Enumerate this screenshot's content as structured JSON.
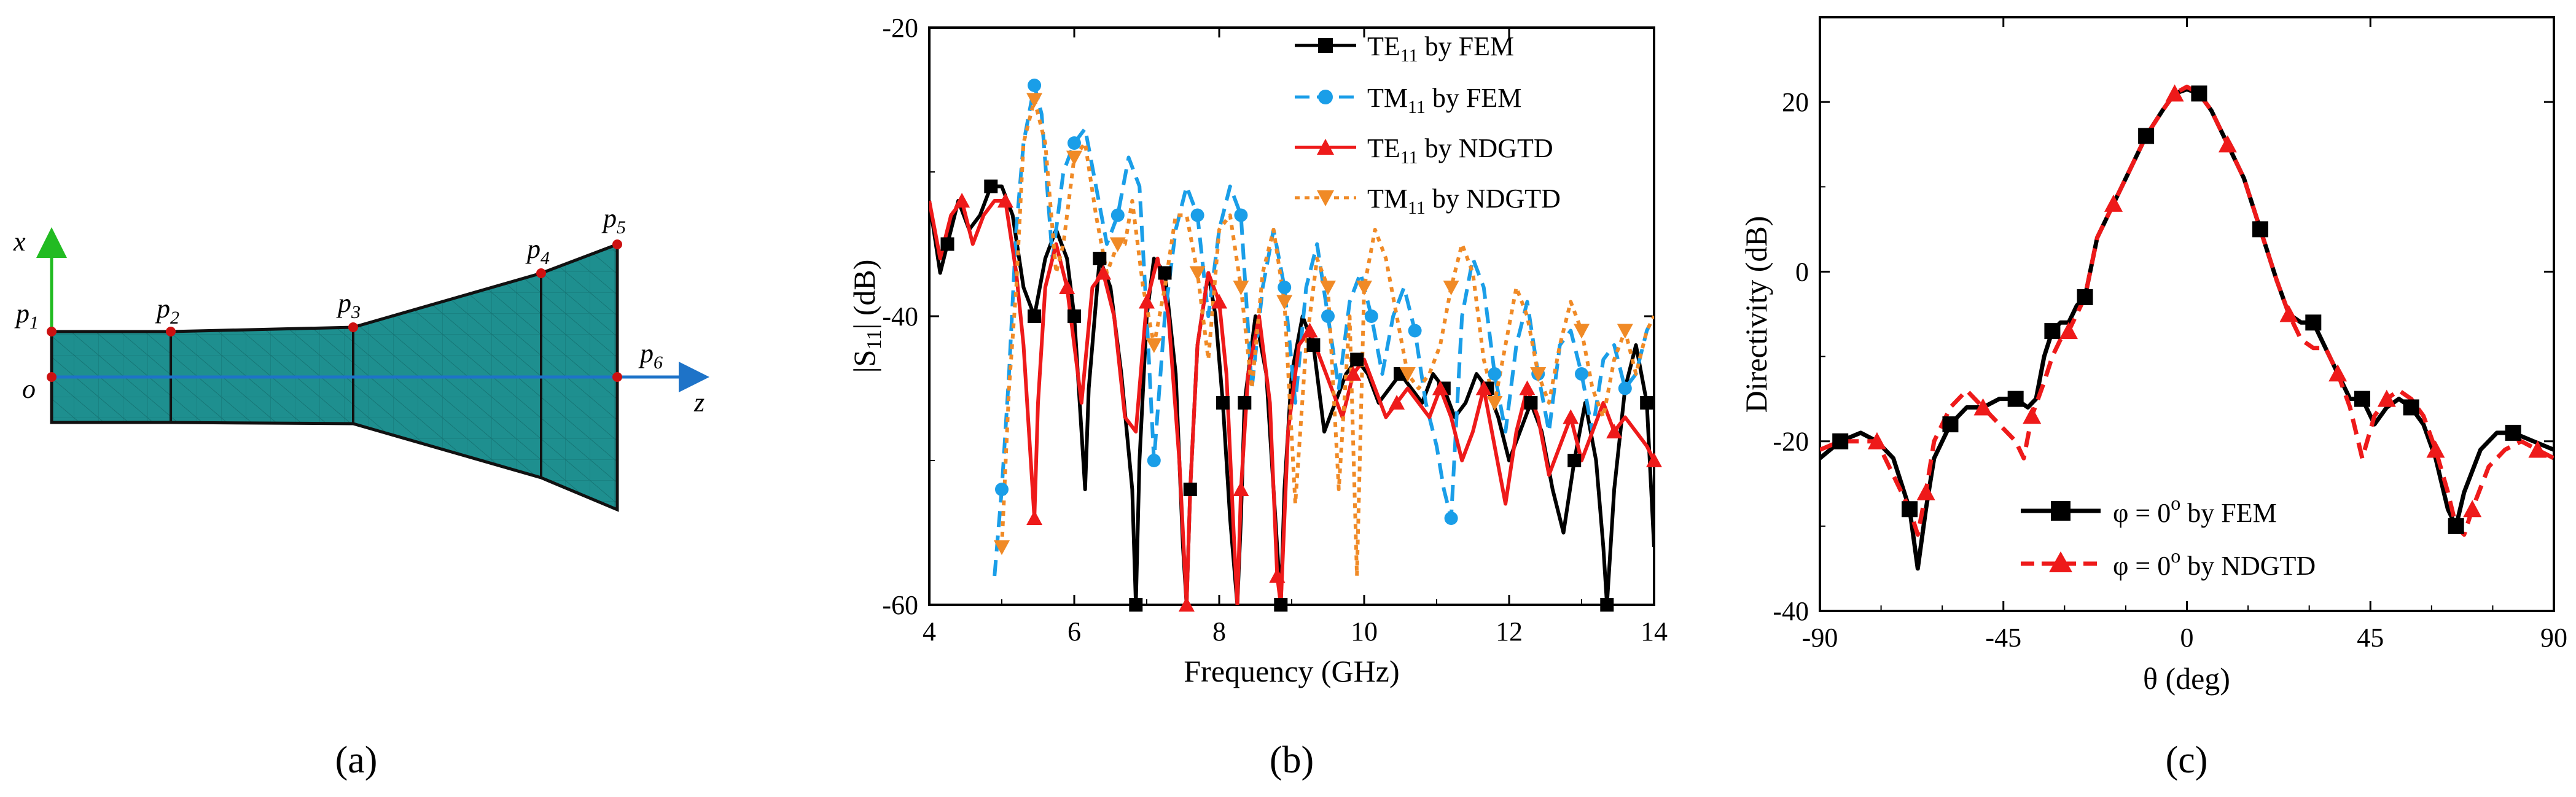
{
  "panel_labels": [
    "(a)",
    "(b)",
    "(c)"
  ],
  "colors": {
    "black": "#000000",
    "blue": "#1a9ee8",
    "red": "#ee1a1a",
    "orange": "#f08a26",
    "teal": "#1e8f8f",
    "axis_green": "#22bb22",
    "axis_blue": "#1e73c8",
    "point_red": "#cc1111"
  },
  "geometry": {
    "axis_x_label": "x",
    "axis_z_label": "z",
    "origin_label": "o",
    "points": [
      {
        "main": "p",
        "sub": "1"
      },
      {
        "main": "p",
        "sub": "2"
      },
      {
        "main": "p",
        "sub": "3"
      },
      {
        "main": "p",
        "sub": "4"
      },
      {
        "main": "p",
        "sub": "5"
      },
      {
        "main": "p",
        "sub": "6"
      }
    ]
  },
  "chart_data": [
    {
      "type": "line",
      "panel": "b",
      "xlabel": "Frequency (GHz)",
      "ylabel_parts": [
        "|S",
        "11",
        "| (dB)"
      ],
      "xlim": [
        4,
        14
      ],
      "ylim": [
        -60,
        -20
      ],
      "xticks": [
        "4",
        "6",
        "8",
        "10",
        "12",
        "14"
      ],
      "yticks": [
        "-60",
        "-40",
        "-20"
      ],
      "legend_position": "top-right",
      "series": [
        {
          "name": "TE11 by FEM",
          "label_parts": [
            "TE",
            "11",
            " by FEM"
          ],
          "color_key": "black",
          "marker": "square",
          "dash": "solid",
          "x": [
            4,
            4.15,
            4.25,
            4.4,
            4.55,
            4.7,
            4.85,
            5,
            5.15,
            5.3,
            5.45,
            5.6,
            5.75,
            5.9,
            6.0,
            6.1,
            6.15,
            6.2,
            6.35,
            6.5,
            6.65,
            6.8,
            6.85,
            6.9,
            7.0,
            7.1,
            7.25,
            7.4,
            7.5,
            7.55,
            7.6,
            7.7,
            7.85,
            7.95,
            8.05,
            8.15,
            8.25,
            8.3,
            8.35,
            8.5,
            8.65,
            8.8,
            8.85,
            8.9,
            9.0,
            9.15,
            9.3,
            9.45,
            9.6,
            9.75,
            9.9,
            10.05,
            10.2,
            10.35,
            10.5,
            10.65,
            10.8,
            10.95,
            11.1,
            11.25,
            11.4,
            11.55,
            11.7,
            11.85,
            12.0,
            12.15,
            12.3,
            12.45,
            12.6,
            12.75,
            12.9,
            13.05,
            13.2,
            13.3,
            13.35,
            13.45,
            13.6,
            13.75,
            13.9,
            14.0
          ],
          "y": [
            -32,
            -37,
            -35,
            -32,
            -34,
            -33,
            -31,
            -31,
            -33,
            -38,
            -40,
            -36,
            -34,
            -36,
            -40,
            -48,
            -52,
            -45,
            -36,
            -38,
            -44,
            -52,
            -60,
            -50,
            -40,
            -36,
            -37,
            -44,
            -56,
            -60,
            -52,
            -42,
            -37,
            -40,
            -46,
            -54,
            -60,
            -54,
            -46,
            -40,
            -44,
            -56,
            -60,
            -52,
            -44,
            -40,
            -42,
            -48,
            -46,
            -44,
            -43,
            -44,
            -46,
            -45,
            -44,
            -45,
            -46,
            -44,
            -45,
            -47,
            -46,
            -44,
            -45,
            -47,
            -50,
            -48,
            -46,
            -48,
            -52,
            -55,
            -50,
            -46,
            -50,
            -56,
            -60,
            -52,
            -45,
            -42,
            -46,
            -56
          ]
        },
        {
          "name": "TM11 by FEM",
          "label_parts": [
            "TM",
            "11",
            " by FEM"
          ],
          "color_key": "blue",
          "marker": "circle",
          "dash": "dash",
          "x": [
            4.9,
            5.0,
            5.1,
            5.2,
            5.3,
            5.45,
            5.55,
            5.7,
            5.85,
            6.0,
            6.15,
            6.3,
            6.45,
            6.6,
            6.75,
            6.9,
            7.0,
            7.1,
            7.25,
            7.4,
            7.55,
            7.7,
            7.85,
            8.0,
            8.15,
            8.3,
            8.45,
            8.6,
            8.75,
            8.9,
            9.05,
            9.2,
            9.35,
            9.5,
            9.65,
            9.8,
            9.95,
            10.1,
            10.25,
            10.4,
            10.55,
            10.7,
            10.85,
            11.0,
            11.1,
            11.2,
            11.35,
            11.5,
            11.65,
            11.8,
            11.95,
            12.1,
            12.25,
            12.4,
            12.55,
            12.7,
            12.85,
            13.0,
            13.15,
            13.3,
            13.45,
            13.6,
            13.75,
            13.9,
            14.0
          ],
          "y": [
            -58,
            -52,
            -44,
            -34,
            -28,
            -24,
            -26,
            -36,
            -30,
            -28,
            -27,
            -31,
            -35,
            -33,
            -29,
            -31,
            -40,
            -50,
            -40,
            -34,
            -31,
            -33,
            -40,
            -34,
            -31,
            -33,
            -45,
            -38,
            -34,
            -38,
            -46,
            -38,
            -35,
            -40,
            -45,
            -39,
            -37,
            -40,
            -44,
            -40,
            -38,
            -41,
            -46,
            -49,
            -52,
            -54,
            -40,
            -36,
            -38,
            -44,
            -48,
            -42,
            -39,
            -44,
            -48,
            -42,
            -41,
            -44,
            -48,
            -43,
            -42,
            -45,
            -44,
            -41,
            -40
          ]
        },
        {
          "name": "TE11 by NDGTD",
          "label_parts": [
            "TE",
            "11",
            " by NDGTD"
          ],
          "color_key": "red",
          "marker": "triangle",
          "dash": "solid",
          "x": [
            4,
            4.15,
            4.3,
            4.45,
            4.6,
            4.75,
            4.9,
            5.05,
            5.2,
            5.3,
            5.4,
            5.45,
            5.5,
            5.6,
            5.75,
            5.9,
            6.0,
            6.1,
            6.25,
            6.4,
            6.55,
            6.7,
            6.85,
            7.0,
            7.15,
            7.3,
            7.45,
            7.55,
            7.6,
            7.7,
            7.85,
            8.0,
            8.1,
            8.2,
            8.25,
            8.3,
            8.4,
            8.55,
            8.7,
            8.8,
            8.85,
            8.95,
            9.1,
            9.25,
            9.4,
            9.55,
            9.7,
            9.85,
            10.0,
            10.15,
            10.3,
            10.45,
            10.6,
            10.75,
            10.9,
            11.05,
            11.2,
            11.35,
            11.5,
            11.65,
            11.8,
            11.95,
            12.1,
            12.25,
            12.4,
            12.55,
            12.7,
            12.85,
            13.0,
            13.15,
            13.3,
            13.45,
            13.6,
            13.75,
            13.9,
            14.0
          ],
          "y": [
            -32,
            -36,
            -33,
            -32,
            -35,
            -33,
            -32,
            -32,
            -37,
            -42,
            -50,
            -54,
            -46,
            -38,
            -35,
            -38,
            -42,
            -46,
            -38,
            -37,
            -40,
            -47,
            -48,
            -39,
            -36,
            -40,
            -50,
            -60,
            -52,
            -42,
            -37,
            -39,
            -44,
            -55,
            -60,
            -52,
            -44,
            -40,
            -46,
            -58,
            -60,
            -48,
            -42,
            -41,
            -43,
            -45,
            -47,
            -44,
            -43,
            -45,
            -47,
            -46,
            -45,
            -46,
            -47,
            -45,
            -47,
            -50,
            -48,
            -45,
            -49,
            -53,
            -48,
            -45,
            -47,
            -51,
            -49,
            -47,
            -50,
            -48,
            -46,
            -48,
            -47,
            -48,
            -49,
            -50
          ]
        },
        {
          "name": "TM11 by NDGTD",
          "label_parts": [
            "TM",
            "11",
            " by NDGTD"
          ],
          "color_key": "orange",
          "marker": "triangle-down",
          "dash": "dot",
          "x": [
            5.0,
            5.1,
            5.2,
            5.3,
            5.45,
            5.6,
            5.75,
            5.85,
            6.0,
            6.15,
            6.3,
            6.45,
            6.6,
            6.7,
            6.8,
            6.95,
            7.1,
            7.25,
            7.4,
            7.55,
            7.7,
            7.85,
            8.0,
            8.15,
            8.3,
            8.45,
            8.6,
            8.75,
            8.9,
            9.05,
            9.2,
            9.35,
            9.5,
            9.65,
            9.8,
            9.9,
            10.0,
            10.15,
            10.3,
            10.45,
            10.6,
            10.75,
            10.9,
            11.05,
            11.2,
            11.35,
            11.5,
            11.65,
            11.8,
            11.95,
            12.1,
            12.25,
            12.4,
            12.55,
            12.7,
            12.85,
            13.0,
            13.15,
            13.3,
            13.45,
            13.6,
            13.75,
            13.9,
            14.0
          ],
          "y": [
            -56,
            -45,
            -38,
            -28,
            -25,
            -28,
            -37,
            -35,
            -29,
            -28,
            -33,
            -37,
            -35,
            -35,
            -32,
            -38,
            -42,
            -38,
            -33,
            -33,
            -37,
            -43,
            -34,
            -33,
            -38,
            -45,
            -37,
            -34,
            -39,
            -53,
            -42,
            -36,
            -38,
            -52,
            -40,
            -58,
            -38,
            -34,
            -36,
            -40,
            -44,
            -45,
            -44,
            -42,
            -38,
            -35,
            -37,
            -43,
            -46,
            -42,
            -38,
            -40,
            -44,
            -46,
            -42,
            -39,
            -41,
            -45,
            -47,
            -43,
            -41,
            -44,
            -41,
            -40
          ]
        }
      ]
    },
    {
      "type": "line",
      "panel": "c",
      "xlabel": "θ (deg)",
      "ylabel": "Directivity (dB)",
      "xlim": [
        -90,
        90
      ],
      "ylim": [
        -40,
        30
      ],
      "xticks": [
        "-90",
        "-45",
        "0",
        "45",
        "90"
      ],
      "yticks": [
        "-40",
        "-20",
        "0",
        "20"
      ],
      "legend_position": "bottom-center",
      "series": [
        {
          "name": "φ = 0o by FEM",
          "label_parts": [
            "φ = 0",
            "o",
            " by FEM"
          ],
          "color_key": "black",
          "marker": "square",
          "dash": "solid",
          "x": [
            -90,
            -85,
            -80,
            -76,
            -72,
            -68,
            -66,
            -64,
            -62,
            -58,
            -54,
            -50,
            -46,
            -42,
            -39,
            -37,
            -35,
            -33,
            -31,
            -29,
            -27,
            -25,
            -22,
            -18,
            -14,
            -10,
            -6,
            -3,
            0,
            3,
            6,
            10,
            14,
            18,
            22,
            25,
            28,
            31,
            34,
            37,
            40,
            43,
            46,
            49,
            52,
            55,
            58,
            61,
            64,
            66,
            68,
            72,
            76,
            80,
            85,
            90
          ],
          "y": [
            -22,
            -20,
            -19,
            -20,
            -22,
            -28,
            -35,
            -28,
            -22,
            -18,
            -16,
            -16,
            -15,
            -15,
            -16,
            -15,
            -10,
            -7,
            -6,
            -6,
            -4,
            -3,
            4,
            8,
            12,
            16,
            19,
            21,
            21.5,
            21,
            19,
            15,
            11,
            5,
            -1,
            -5,
            -6,
            -6,
            -9,
            -12,
            -15,
            -15,
            -18,
            -16,
            -15,
            -16,
            -18,
            -22,
            -28,
            -30,
            -26,
            -21,
            -19,
            -19,
            -20,
            -21
          ]
        },
        {
          "name": "φ = 0o by NDGTD",
          "label_parts": [
            "φ = 0",
            "o",
            " by NDGTD"
          ],
          "color_key": "red",
          "marker": "triangle",
          "dash": "dash",
          "x": [
            -90,
            -85,
            -80,
            -76,
            -72,
            -68,
            -66,
            -64,
            -62,
            -58,
            -54,
            -50,
            -46,
            -42,
            -40,
            -38,
            -35,
            -33,
            -31,
            -29,
            -27,
            -25,
            -22,
            -18,
            -14,
            -10,
            -6,
            -3,
            0,
            3,
            6,
            10,
            14,
            18,
            22,
            25,
            28,
            31,
            34,
            37,
            40,
            43,
            46,
            49,
            52,
            55,
            58,
            61,
            64,
            66,
            68,
            70,
            74,
            78,
            82,
            86,
            90
          ],
          "y": [
            -21,
            -20,
            -20,
            -20,
            -24,
            -28,
            -31,
            -26,
            -20,
            -16,
            -14,
            -16,
            -18,
            -20,
            -22,
            -17,
            -13,
            -10,
            -8,
            -7,
            -5,
            -3,
            4,
            8,
            12,
            16,
            19,
            21,
            21.8,
            21,
            19,
            15,
            11,
            5,
            -1,
            -5,
            -8,
            -9,
            -9,
            -12,
            -16,
            -22,
            -17,
            -15,
            -14,
            -15,
            -17,
            -21,
            -26,
            -30,
            -31,
            -28,
            -23,
            -21,
            -20,
            -21,
            -22
          ]
        }
      ]
    }
  ]
}
